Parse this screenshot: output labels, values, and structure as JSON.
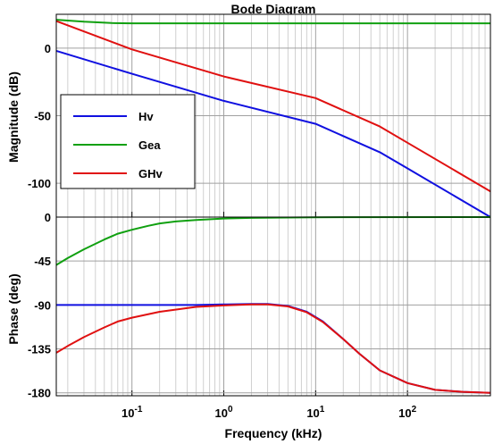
{
  "chart_data": [
    {
      "type": "line",
      "title": "Bode Diagram",
      "ylabel": "Magnitude (dB)",
      "xscale": "log",
      "xlim": [
        0.015,
        800
      ],
      "ylim": [
        -125,
        25
      ],
      "yticks": [
        0,
        -50,
        -100
      ],
      "grid": true,
      "legend_position": "left-middle",
      "series": [
        {
          "name": "Hv",
          "color": "#1010e0",
          "x": [
            0.015,
            0.1,
            1,
            10,
            50,
            100,
            800
          ],
          "y": [
            -2,
            -19,
            -39,
            -56,
            -77,
            -89,
            -125
          ]
        },
        {
          "name": "Gea",
          "color": "#10a010",
          "x": [
            0.015,
            0.03,
            0.06,
            0.1,
            1,
            10,
            100,
            800
          ],
          "y": [
            21,
            19.5,
            18.5,
            18.3,
            18.3,
            18.3,
            18.3,
            18.3
          ]
        },
        {
          "name": "GHv",
          "color": "#e01010",
          "x": [
            0.015,
            0.1,
            1,
            10,
            50,
            100,
            800
          ],
          "y": [
            20,
            -1,
            -21,
            -37,
            -58,
            -70,
            -106
          ]
        }
      ]
    },
    {
      "type": "line",
      "ylabel": "Phase (deg)",
      "xlabel": "Frequency  (kHz)",
      "xscale": "log",
      "xlim": [
        0.015,
        800
      ],
      "ylim": [
        -183,
        0
      ],
      "yticks": [
        0,
        -45,
        -90,
        -135,
        -180
      ],
      "xticks": [
        0.1,
        1,
        10,
        100
      ],
      "xtick_labels": [
        {
          "base": "10",
          "exp": "-1"
        },
        {
          "base": "10",
          "exp": "0"
        },
        {
          "base": "10",
          "exp": "1"
        },
        {
          "base": "10",
          "exp": "2"
        }
      ],
      "grid": true,
      "series": [
        {
          "name": "Hv",
          "color": "#1010e0",
          "x": [
            0.015,
            0.1,
            0.5,
            1,
            2,
            3,
            5,
            8,
            12,
            20,
            30,
            50,
            100,
            200,
            400,
            800
          ],
          "y": [
            -90,
            -90,
            -90,
            -89.5,
            -89,
            -89,
            -91,
            -97,
            -107,
            -125,
            -140,
            -157,
            -170,
            -177,
            -179,
            -180
          ]
        },
        {
          "name": "Gea",
          "color": "#10a010",
          "x": [
            0.015,
            0.02,
            0.03,
            0.05,
            0.07,
            0.1,
            0.15,
            0.2,
            0.3,
            0.5,
            1,
            2,
            10,
            800
          ],
          "y": [
            -49,
            -42,
            -33,
            -23,
            -17,
            -13,
            -9,
            -6.5,
            -4.5,
            -3,
            -1.5,
            -0.8,
            -0.2,
            0
          ]
        },
        {
          "name": "GHv",
          "color": "#e01010",
          "x": [
            0.015,
            0.02,
            0.03,
            0.05,
            0.07,
            0.1,
            0.2,
            0.5,
            1,
            2,
            3,
            5,
            8,
            12,
            20,
            30,
            50,
            100,
            200,
            400,
            800
          ],
          "y": [
            -139,
            -132,
            -123,
            -113,
            -107,
            -103,
            -97,
            -92,
            -90.5,
            -89.5,
            -89.5,
            -91.5,
            -97.5,
            -107.5,
            -125,
            -140,
            -157,
            -170,
            -177,
            -179,
            -180
          ]
        }
      ]
    }
  ]
}
